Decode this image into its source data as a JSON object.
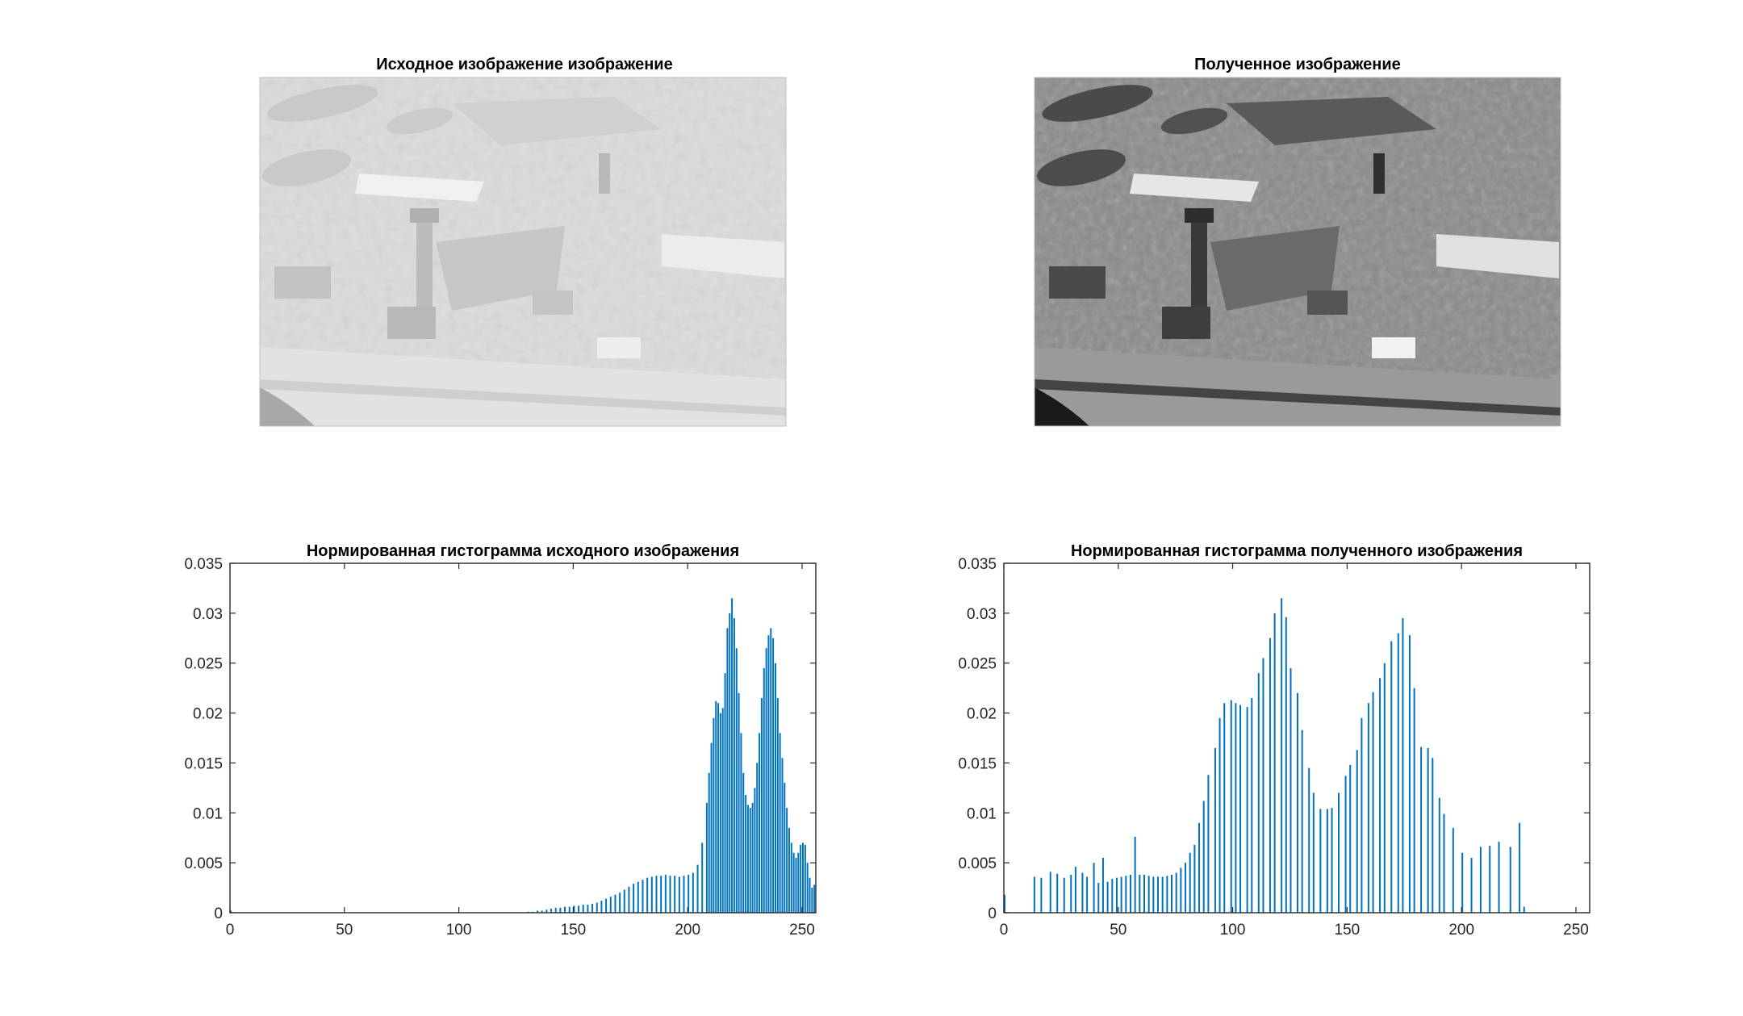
{
  "panels": {
    "original_image_title": "Исходное изображение изображение",
    "result_image_title": "Полученное изображение"
  },
  "colors": {
    "bar": "#0072BD",
    "axis": "#262626"
  },
  "chart_data": [
    {
      "type": "bar",
      "title": "Нормированная гистограмма исходного изображения",
      "xlabel": "",
      "ylabel": "",
      "xlim": [
        0,
        256
      ],
      "ylim": [
        0,
        0.035
      ],
      "xticks": [
        0,
        50,
        100,
        150,
        200,
        250
      ],
      "xtick_labels": [
        "0",
        "50",
        "100",
        "150",
        "200",
        "250"
      ],
      "yticks": [
        0,
        0.005,
        0.01,
        0.015,
        0.02,
        0.025,
        0.03,
        0.035
      ],
      "ytick_labels": [
        "0",
        "0.005",
        "0.01",
        "0.015",
        "0.02",
        "0.025",
        "0.03",
        "0.035"
      ],
      "grid": false,
      "bars": [
        [
          0,
          0.0002
        ],
        [
          130,
          0.0001
        ],
        [
          132,
          0.0001
        ],
        [
          134,
          0.0002
        ],
        [
          136,
          0.0002
        ],
        [
          138,
          0.0003
        ],
        [
          140,
          0.0004
        ],
        [
          142,
          0.0005
        ],
        [
          144,
          0.0005
        ],
        [
          146,
          0.0006
        ],
        [
          148,
          0.0006
        ],
        [
          150,
          0.0007
        ],
        [
          152,
          0.0007
        ],
        [
          154,
          0.0008
        ],
        [
          156,
          0.0008
        ],
        [
          158,
          0.0009
        ],
        [
          160,
          0.001
        ],
        [
          162,
          0.0012
        ],
        [
          164,
          0.0014
        ],
        [
          166,
          0.0016
        ],
        [
          168,
          0.0018
        ],
        [
          170,
          0.002
        ],
        [
          172,
          0.0023
        ],
        [
          174,
          0.0026
        ],
        [
          176,
          0.0029
        ],
        [
          178,
          0.0031
        ],
        [
          180,
          0.0033
        ],
        [
          182,
          0.0035
        ],
        [
          184,
          0.0036
        ],
        [
          186,
          0.0037
        ],
        [
          188,
          0.0037
        ],
        [
          190,
          0.0038
        ],
        [
          192,
          0.0037
        ],
        [
          194,
          0.0037
        ],
        [
          196,
          0.0036
        ],
        [
          198,
          0.0037
        ],
        [
          200,
          0.0038
        ],
        [
          202,
          0.004
        ],
        [
          204,
          0.0048
        ],
        [
          206,
          0.007
        ],
        [
          208,
          0.011
        ],
        [
          209,
          0.014
        ],
        [
          210,
          0.017
        ],
        [
          211,
          0.0195
        ],
        [
          212,
          0.0212
        ],
        [
          213,
          0.021
        ],
        [
          214,
          0.02
        ],
        [
          215,
          0.0205
        ],
        [
          216,
          0.024
        ],
        [
          217,
          0.0285
        ],
        [
          218,
          0.03
        ],
        [
          219,
          0.0315
        ],
        [
          220,
          0.0295
        ],
        [
          221,
          0.0265
        ],
        [
          222,
          0.022
        ],
        [
          223,
          0.018
        ],
        [
          224,
          0.014
        ],
        [
          225,
          0.0118
        ],
        [
          226,
          0.0108
        ],
        [
          227,
          0.0105
        ],
        [
          228,
          0.011
        ],
        [
          229,
          0.0125
        ],
        [
          230,
          0.015
        ],
        [
          231,
          0.018
        ],
        [
          232,
          0.0215
        ],
        [
          233,
          0.0245
        ],
        [
          234,
          0.0265
        ],
        [
          235,
          0.0278
        ],
        [
          236,
          0.0285
        ],
        [
          237,
          0.0275
        ],
        [
          238,
          0.025
        ],
        [
          239,
          0.0215
        ],
        [
          240,
          0.018
        ],
        [
          241,
          0.0155
        ],
        [
          242,
          0.013
        ],
        [
          243,
          0.0105
        ],
        [
          244,
          0.0085
        ],
        [
          245,
          0.007
        ],
        [
          246,
          0.006
        ],
        [
          247,
          0.0055
        ],
        [
          248,
          0.006
        ],
        [
          249,
          0.0068
        ],
        [
          250,
          0.007
        ],
        [
          251,
          0.0068
        ],
        [
          252,
          0.005
        ],
        [
          253,
          0.0035
        ],
        [
          254,
          0.0025
        ],
        [
          255,
          0.0028
        ]
      ]
    },
    {
      "type": "bar",
      "title": "Нормированная гистограмма полученного изображения",
      "xlabel": "",
      "ylabel": "",
      "xlim": [
        0,
        256
      ],
      "ylim": [
        0,
        0.035
      ],
      "xticks": [
        0,
        50,
        100,
        150,
        200,
        250
      ],
      "xtick_labels": [
        "0",
        "50",
        "100",
        "150",
        "200",
        "250"
      ],
      "yticks": [
        0,
        0.005,
        0.01,
        0.015,
        0.02,
        0.025,
        0.03,
        0.035
      ],
      "ytick_labels": [
        "0",
        "0.005",
        "0.01",
        "0.015",
        "0.02",
        "0.025",
        "0.03",
        "0.035"
      ],
      "grid": false,
      "bars": [
        [
          0,
          0.0018
        ],
        [
          13,
          0.0036
        ],
        [
          16,
          0.0035
        ],
        [
          20,
          0.0041
        ],
        [
          23,
          0.0039
        ],
        [
          26,
          0.0035
        ],
        [
          29,
          0.0038
        ],
        [
          31,
          0.0046
        ],
        [
          34,
          0.004
        ],
        [
          36,
          0.0036
        ],
        [
          39,
          0.005
        ],
        [
          41,
          0.003
        ],
        [
          43,
          0.0055
        ],
        [
          45,
          0.0031
        ],
        [
          47,
          0.0034
        ],
        [
          49,
          0.0035
        ],
        [
          51,
          0.0036
        ],
        [
          53,
          0.0037
        ],
        [
          55,
          0.0038
        ],
        [
          57,
          0.0076
        ],
        [
          59,
          0.0038
        ],
        [
          61,
          0.0038
        ],
        [
          63,
          0.0037
        ],
        [
          65,
          0.0036
        ],
        [
          67,
          0.0036
        ],
        [
          69,
          0.0036
        ],
        [
          71,
          0.0037
        ],
        [
          73,
          0.0038
        ],
        [
          75,
          0.004
        ],
        [
          77,
          0.0045
        ],
        [
          79,
          0.005
        ],
        [
          81,
          0.006
        ],
        [
          83,
          0.0068
        ],
        [
          85,
          0.009
        ],
        [
          87,
          0.0112
        ],
        [
          89,
          0.0138
        ],
        [
          92,
          0.0165
        ],
        [
          94,
          0.0195
        ],
        [
          96,
          0.021
        ],
        [
          99,
          0.0213
        ],
        [
          101,
          0.021
        ],
        [
          103,
          0.0208
        ],
        [
          106,
          0.0206
        ],
        [
          108,
          0.0215
        ],
        [
          111,
          0.024
        ],
        [
          113,
          0.0255
        ],
        [
          116,
          0.0275
        ],
        [
          118,
          0.03
        ],
        [
          121,
          0.0315
        ],
        [
          123,
          0.0296
        ],
        [
          125,
          0.0245
        ],
        [
          128,
          0.022
        ],
        [
          130,
          0.0183
        ],
        [
          133,
          0.0145
        ],
        [
          135,
          0.012
        ],
        [
          138,
          0.0104
        ],
        [
          141,
          0.0104
        ],
        [
          143,
          0.0105
        ],
        [
          146,
          0.012
        ],
        [
          149,
          0.0137
        ],
        [
          151,
          0.0148
        ],
        [
          154,
          0.0163
        ],
        [
          156,
          0.0195
        ],
        [
          159,
          0.021
        ],
        [
          161,
          0.0221
        ],
        [
          164,
          0.0235
        ],
        [
          166,
          0.025
        ],
        [
          169,
          0.0272
        ],
        [
          172,
          0.028
        ],
        [
          174,
          0.0295
        ],
        [
          177,
          0.0278
        ],
        [
          179,
          0.0225
        ],
        [
          182,
          0.0166
        ],
        [
          185,
          0.0165
        ],
        [
          187,
          0.0155
        ],
        [
          190,
          0.0115
        ],
        [
          192,
          0.0099
        ],
        [
          196,
          0.0085
        ],
        [
          200,
          0.006
        ],
        [
          204,
          0.0055
        ],
        [
          208,
          0.0066
        ],
        [
          212,
          0.0067
        ],
        [
          216,
          0.0071
        ],
        [
          221,
          0.0066
        ],
        [
          225,
          0.009
        ],
        [
          227,
          0.0006
        ]
      ]
    }
  ]
}
